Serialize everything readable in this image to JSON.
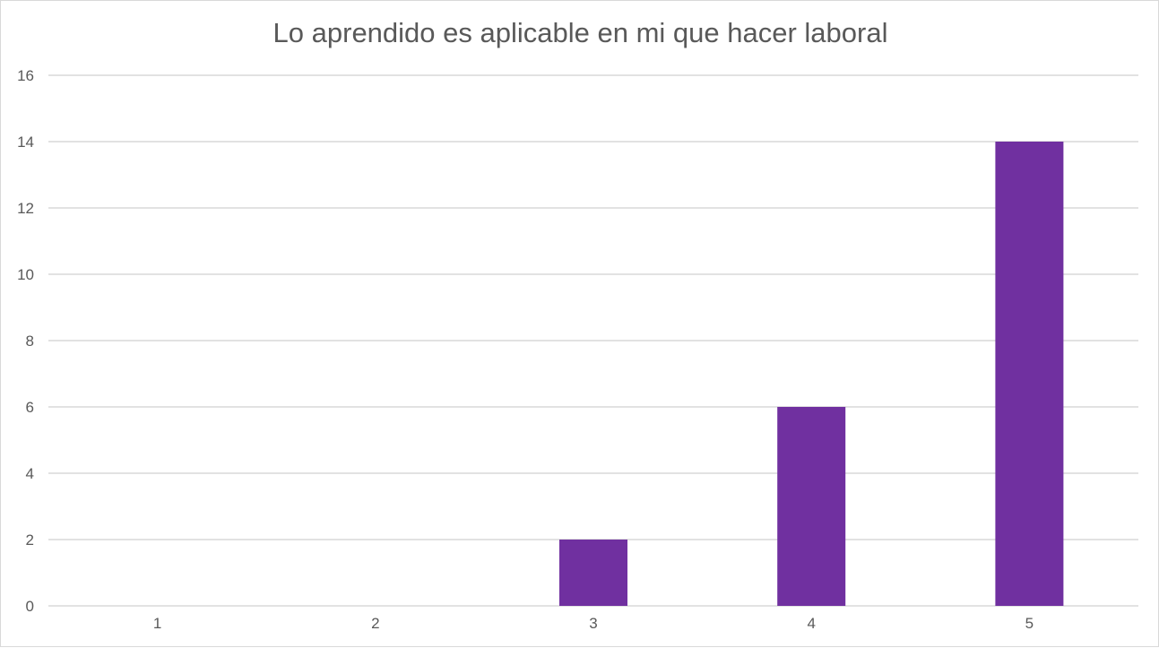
{
  "chart_data": {
    "type": "bar",
    "title": "Lo aprendido es aplicable en mi que hacer laboral",
    "categories": [
      "1",
      "2",
      "3",
      "4",
      "5"
    ],
    "values": [
      0,
      0,
      2,
      6,
      14
    ],
    "ylim": [
      0,
      16
    ],
    "yticks": [
      "0",
      "2",
      "4",
      "6",
      "8",
      "10",
      "12",
      "14",
      "16"
    ],
    "xlabel": "",
    "ylabel": "",
    "grid": true,
    "legend": "none",
    "bar_color": "#7030a0",
    "gridline_color": "#d9d9d9"
  }
}
